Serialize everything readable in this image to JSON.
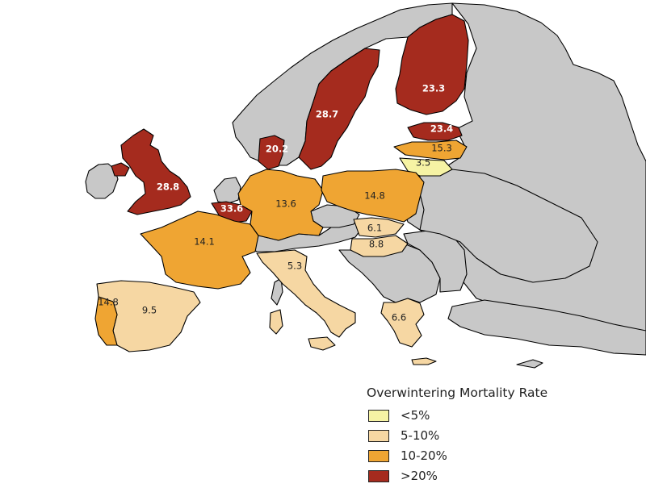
{
  "colors": {
    "no_data": "#c8c8c8",
    "lt5": "#f6f3a4",
    "r5_10": "#f6d7a3",
    "r10_20": "#efa533",
    "gt20": "#a52b1e"
  },
  "countries": [
    {
      "id": "uk",
      "value": "28.8"
    },
    {
      "id": "belgium",
      "value": "33.6"
    },
    {
      "id": "france",
      "value": "14.1"
    },
    {
      "id": "spain",
      "value": "9.5"
    },
    {
      "id": "portugal",
      "value": "14.8"
    },
    {
      "id": "germany",
      "value": "13.6"
    },
    {
      "id": "denmark",
      "value": "20.2"
    },
    {
      "id": "sweden",
      "value": "28.7"
    },
    {
      "id": "finland",
      "value": "23.3"
    },
    {
      "id": "estonia",
      "value": "23.4"
    },
    {
      "id": "latvia",
      "value": "15.3"
    },
    {
      "id": "lithuania",
      "value": "3.5"
    },
    {
      "id": "poland",
      "value": "14.8"
    },
    {
      "id": "slovakia",
      "value": "6.1"
    },
    {
      "id": "hungary",
      "value": "8.8"
    },
    {
      "id": "italy",
      "value": "5.3"
    },
    {
      "id": "greece",
      "value": "6.6"
    }
  ],
  "legend": {
    "title": "Overwintering Mortality Rate",
    "items": [
      {
        "label": "<5%",
        "color": "#f6f3a4"
      },
      {
        "label": "5-10%",
        "color": "#f6d7a3"
      },
      {
        "label": "10-20%",
        "color": "#efa533"
      },
      {
        "label": ">20%",
        "color": "#a52b1e"
      }
    ]
  }
}
